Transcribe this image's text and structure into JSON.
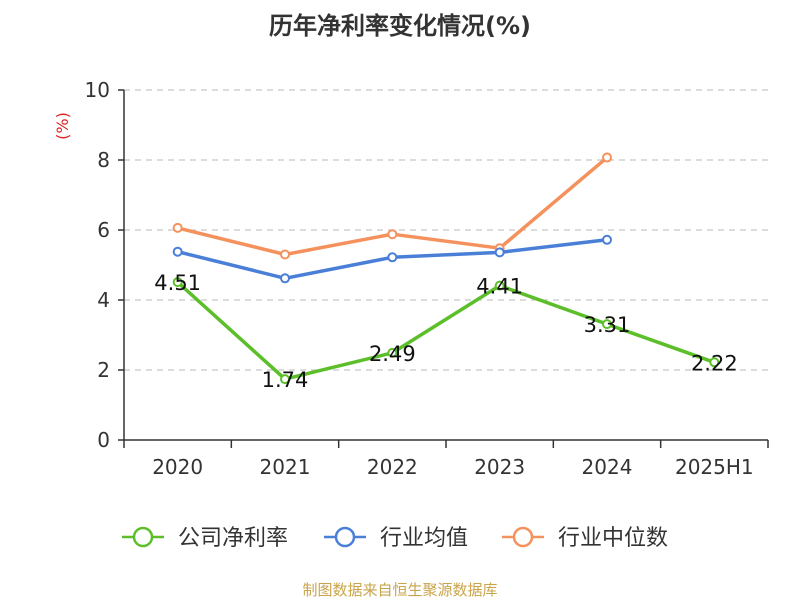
{
  "chart_data": {
    "type": "line",
    "title": "历年净利率变化情况(%)",
    "ylabel": "(%)",
    "categories": [
      "2020",
      "2021",
      "2022",
      "2023",
      "2024",
      "2025H1"
    ],
    "ylim": [
      0,
      10
    ],
    "yticks": [
      0,
      2,
      4,
      6,
      8,
      10
    ],
    "grid": true,
    "legend_position": "bottom",
    "series": [
      {
        "name": "公司净利率",
        "color": "#5cbf2a",
        "values": [
          4.51,
          1.74,
          2.49,
          4.41,
          3.31,
          2.22
        ],
        "show_labels": true
      },
      {
        "name": "行业均值",
        "color": "#4a7fd8",
        "values": [
          5.38,
          4.62,
          5.22,
          5.36,
          5.72,
          null
        ],
        "show_labels": false
      },
      {
        "name": "行业中位数",
        "color": "#f5915c",
        "values": [
          6.06,
          5.3,
          5.88,
          5.48,
          8.07,
          null
        ],
        "show_labels": false
      }
    ]
  },
  "footer": {
    "source": "制图数据来自恒生聚源数据库"
  }
}
